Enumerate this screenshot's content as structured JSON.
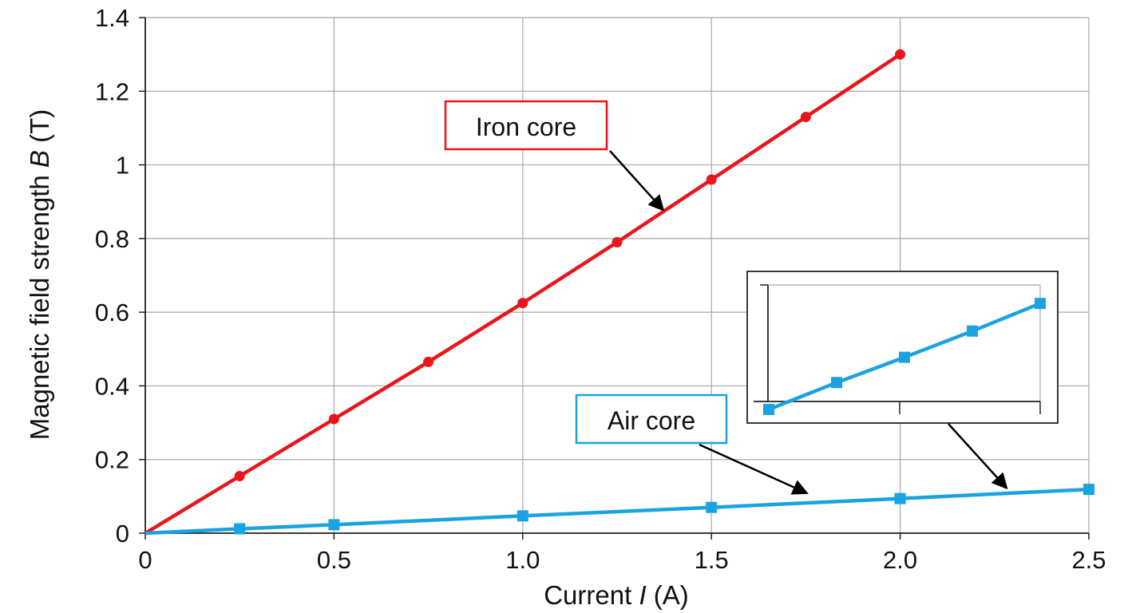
{
  "chart_data": {
    "type": "line",
    "xlabel": {
      "before": "Current ",
      "var": "I",
      "after": " (A)"
    },
    "ylabel": {
      "before": "Magnetic field strength ",
      "var": "B",
      "after": " (T)"
    },
    "xlim": [
      0,
      2.5
    ],
    "ylim": [
      0,
      1.4
    ],
    "x_ticks": [
      {
        "value": 0,
        "label": "0"
      },
      {
        "value": 0.5,
        "label": "0.5"
      },
      {
        "value": 1.0,
        "label": "1.0"
      },
      {
        "value": 1.5,
        "label": "1.5"
      },
      {
        "value": 2.0,
        "label": "2.0"
      },
      {
        "value": 2.5,
        "label": "2.5"
      }
    ],
    "y_ticks": [
      {
        "value": 0,
        "label": "0"
      },
      {
        "value": 0.2,
        "label": "0.2"
      },
      {
        "value": 0.4,
        "label": "0.4"
      },
      {
        "value": 0.6,
        "label": "0.6"
      },
      {
        "value": 0.8,
        "label": "0.8"
      },
      {
        "value": 1.0,
        "label": "1"
      },
      {
        "value": 1.2,
        "label": "1.2"
      },
      {
        "value": 1.4,
        "label": "1.4"
      }
    ],
    "grid": true,
    "series": [
      {
        "name": "Iron core",
        "color": "#e8151b",
        "marker": "circle",
        "points": [
          [
            0,
            0
          ],
          [
            0.25,
            0.155
          ],
          [
            0.5,
            0.31
          ],
          [
            0.75,
            0.465
          ],
          [
            1.0,
            0.625
          ],
          [
            1.25,
            0.79
          ],
          [
            1.5,
            0.96
          ],
          [
            1.75,
            1.13
          ],
          [
            2.0,
            1.3
          ]
        ]
      },
      {
        "name": "Air core",
        "color": "#1aa3e0",
        "marker": "square",
        "points": [
          [
            0,
            0
          ],
          [
            0.25,
            0.012
          ],
          [
            0.5,
            0.023
          ],
          [
            1.0,
            0.047
          ],
          [
            1.5,
            0.07
          ],
          [
            2.0,
            0.094
          ],
          [
            2.5,
            0.119
          ]
        ]
      }
    ],
    "annotations": [
      {
        "text": "Iron core",
        "series": "Iron core",
        "points_to": [
          1.37,
          0.88
        ]
      },
      {
        "text": "Air core",
        "series": "Air core",
        "points_to": [
          1.75,
          0.11
        ]
      }
    ],
    "inset": {
      "series": "Air core",
      "shows": "magnified view of the Air core series",
      "points_to": [
        2.28,
        0.125
      ]
    }
  }
}
